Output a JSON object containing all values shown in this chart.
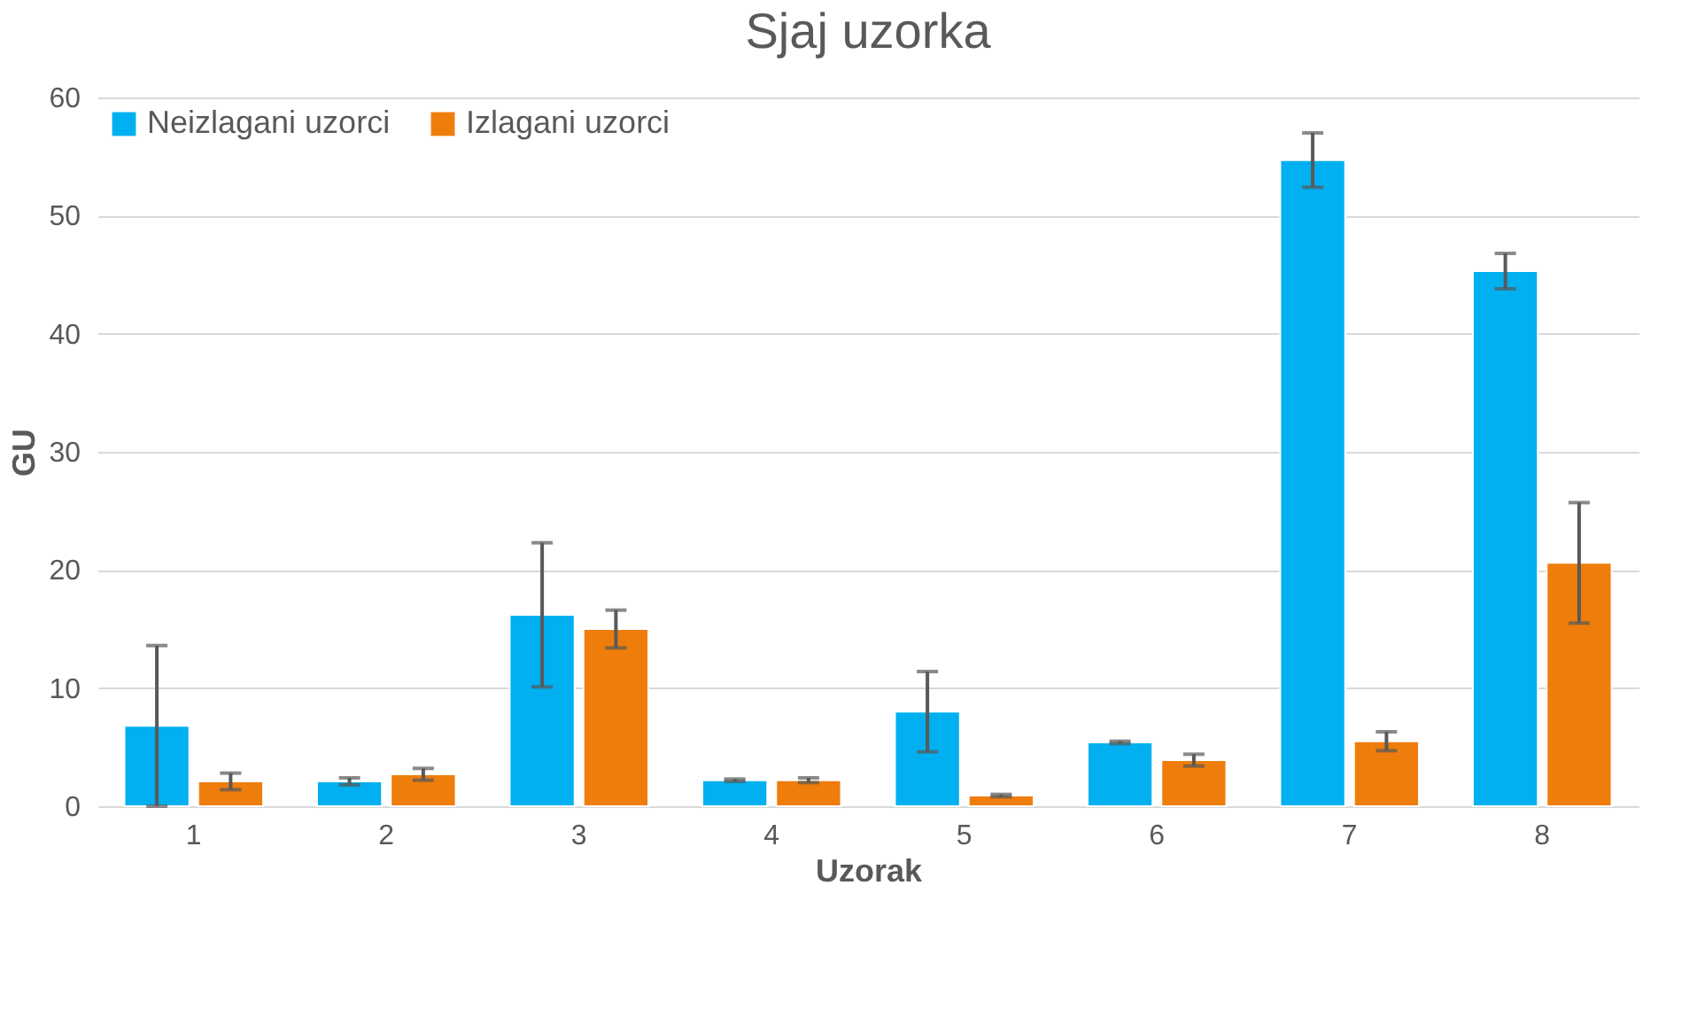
{
  "chart_data": {
    "type": "bar",
    "title": "Sjaj uzorka",
    "xlabel": "Uzorak",
    "ylabel": "GU",
    "categories": [
      "1",
      "2",
      "3",
      "4",
      "5",
      "6",
      "7",
      "8"
    ],
    "series": [
      {
        "name": "Neizlagani uzorci",
        "color": "#00b0f0",
        "values": [
          6.8,
          2.1,
          16.2,
          2.2,
          8.0,
          5.4,
          54.7,
          45.3
        ],
        "errors": [
          6.8,
          0.3,
          6.1,
          0.1,
          3.4,
          0.1,
          2.3,
          1.5
        ]
      },
      {
        "name": "Izlagani uzorci",
        "color": "#ef7d0b",
        "values": [
          2.1,
          2.7,
          15.0,
          2.2,
          0.9,
          3.9,
          5.5,
          20.6
        ],
        "errors": [
          0.7,
          0.5,
          1.6,
          0.2,
          0.1,
          0.5,
          0.8,
          5.1
        ]
      }
    ],
    "ylim": [
      0,
      60
    ],
    "yticks": [
      0,
      10,
      20,
      30,
      40,
      50,
      60
    ],
    "grid": "y",
    "legend": "top left"
  }
}
